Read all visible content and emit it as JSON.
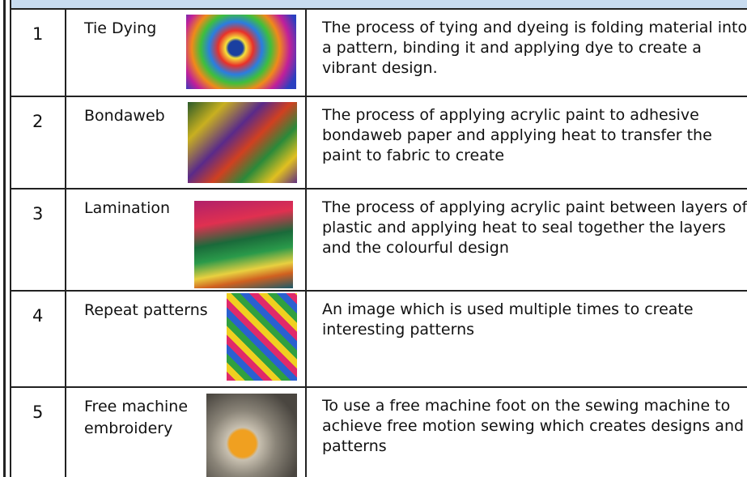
{
  "table": {
    "rows": [
      {
        "number": "1",
        "name": "Tie Dying",
        "description": "The process of tying and dyeing is folding material into a pattern, binding it and applying dye to create a vibrant design."
      },
      {
        "number": "2",
        "name": "Bondaweb",
        "description": "The process of applying acrylic paint to adhesive bondaweb paper and applying heat to transfer the paint to fabric to create"
      },
      {
        "number": "3",
        "name": "Lamination",
        "description": "The process of applying acrylic paint between layers of plastic and applying heat to seal together the layers and the colourful design"
      },
      {
        "number": "4",
        "name": "Repeat patterns",
        "description": "An image which is used multiple times to create interesting patterns"
      },
      {
        "number": "5",
        "name": "Free machine embroidery",
        "description": "To use a free machine foot on the sewing machine to achieve free motion sewing which creates designs and patterns"
      }
    ]
  }
}
